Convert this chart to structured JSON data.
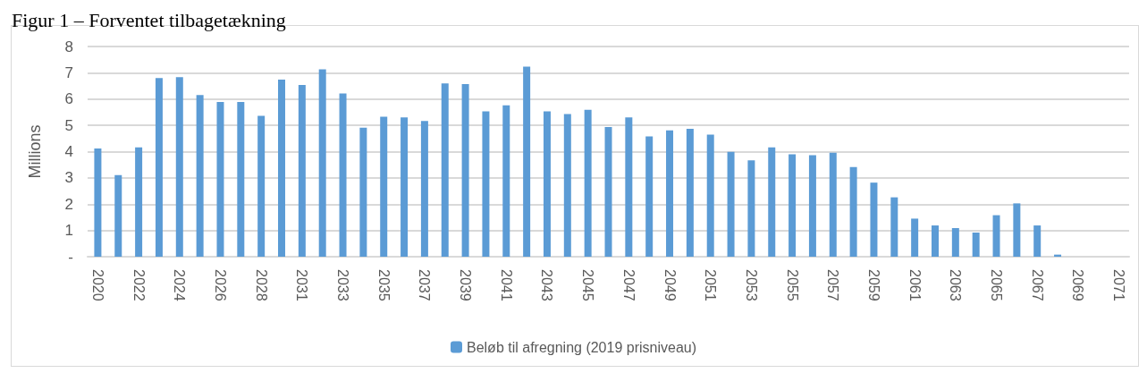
{
  "chart_data": {
    "type": "bar",
    "title": "Figur 1 – Forventet tilbagetækning",
    "ylabel": "Millions",
    "categories": [
      "2020",
      null,
      "2022",
      null,
      "2024",
      null,
      "2026",
      null,
      "2028",
      null,
      "2031",
      null,
      "2033",
      null,
      "2035",
      null,
      "2037",
      null,
      "2039",
      null,
      "2041",
      null,
      "2043",
      null,
      "2045",
      null,
      "2047",
      null,
      "2049",
      null,
      "2051",
      null,
      "2053",
      null,
      "2055",
      null,
      "2057",
      null,
      "2059",
      null,
      "2061",
      null,
      "2063",
      null,
      "2065",
      null,
      "2067",
      null,
      "2069",
      null,
      "2071"
    ],
    "series": [
      {
        "name": "Beløb til afregning (2019 prisniveau)",
        "color": "#5b9bd5",
        "values": [
          4.12,
          3.11,
          4.16,
          6.8,
          6.83,
          6.15,
          5.89,
          5.89,
          5.36,
          6.74,
          6.54,
          7.13,
          6.21,
          4.91,
          5.33,
          5.3,
          5.17,
          6.6,
          6.57,
          5.53,
          5.76,
          7.23,
          5.53,
          5.43,
          5.59,
          4.94,
          5.3,
          4.58,
          4.81,
          4.87,
          4.65,
          3.99,
          3.67,
          4.16,
          3.9,
          3.86,
          3.96,
          3.41,
          2.82,
          2.26,
          1.45,
          1.19,
          1.09,
          0.92,
          1.58,
          2.03,
          1.19,
          0.08,
          0,
          0,
          0
        ]
      }
    ],
    "ylim": [
      0,
      8
    ],
    "yticks": [
      {
        "value": 0,
        "label": "-"
      },
      1,
      2,
      3,
      4,
      5,
      6,
      7,
      8
    ],
    "grid": "y",
    "legend": "bottom"
  }
}
